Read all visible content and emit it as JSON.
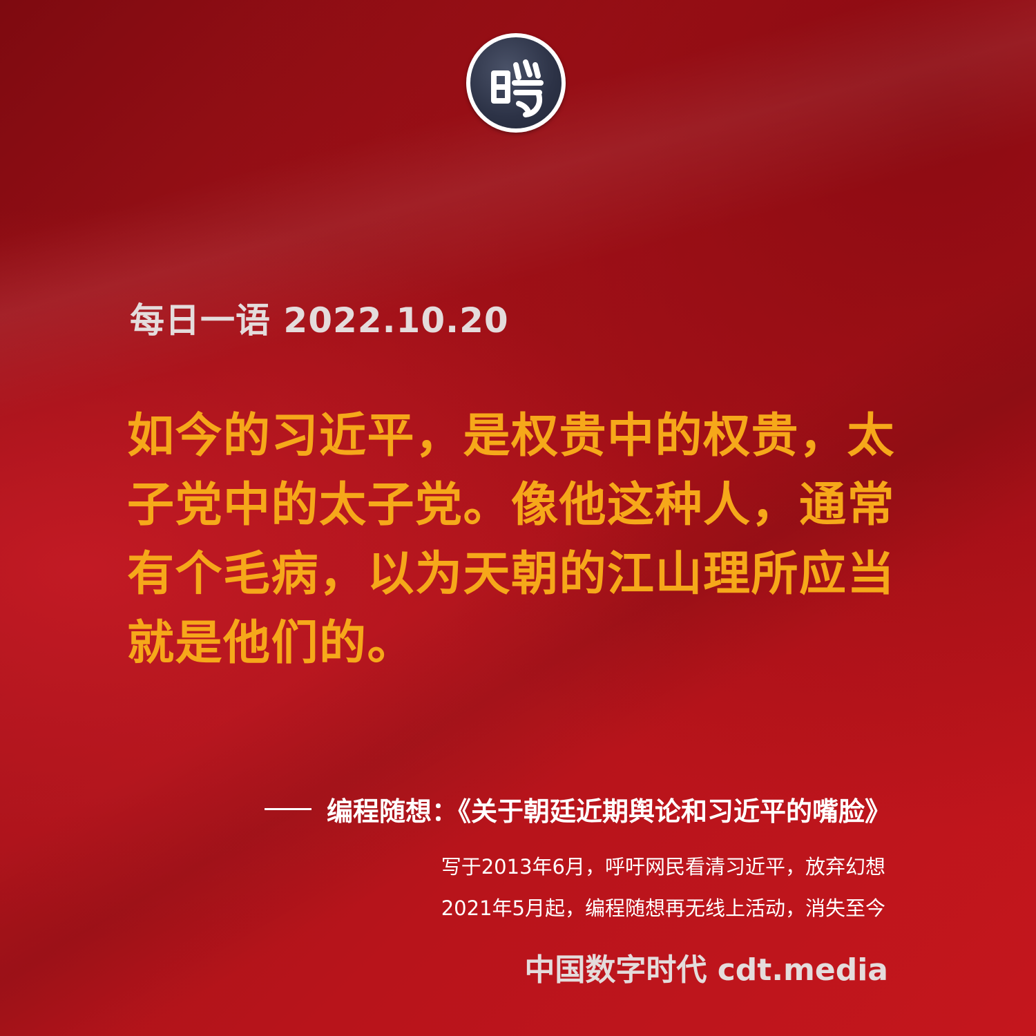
{
  "logo": {
    "icon": "cdt-seal-logo",
    "colors": {
      "ring": "#ffffff",
      "fill": "#2c3246"
    }
  },
  "heading": "每日一语 2022.10.20",
  "quote": "如今的习近平，是权贵中的权贵，太子党中的太子党。像他这种人，通常有个毛病，以为天朝的江山理所应当就是他们的。",
  "source": {
    "text": "编程随想：《关于朝廷近期舆论和习近平的嘴脸》"
  },
  "notes": [
    "写于2013年6月，呼吁网民看清习近平，放弃幻想",
    "2021年5月起，编程随想再无线上活动，消失至今"
  ],
  "brand": "中国数字时代 cdt.media",
  "colors": {
    "background": "#a51219",
    "quote": "#f6a81a",
    "heading": "#e4dcdc",
    "text": "#ffffff"
  }
}
